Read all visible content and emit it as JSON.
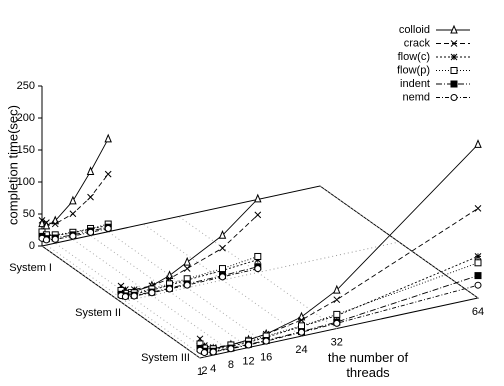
{
  "chart_data": {
    "type": "line3d",
    "zlabel": "completion time(sec)",
    "xlabel": "the number of threads",
    "zlim": [
      0,
      250
    ],
    "zticks": [
      0,
      50,
      100,
      150,
      200,
      250
    ],
    "xlim": [
      1,
      64
    ],
    "xticks": [
      1,
      2,
      4,
      8,
      12,
      16,
      24,
      32,
      64
    ],
    "depth_categories": [
      "System I",
      "System II",
      "System III"
    ],
    "x": [
      [
        1,
        2,
        4,
        8,
        12,
        16
      ],
      [
        1,
        2,
        4,
        8,
        12,
        16,
        24,
        32
      ],
      [
        1,
        2,
        4,
        8,
        12,
        16,
        24,
        32,
        64
      ]
    ],
    "series": [
      {
        "name": "colloid",
        "marker": "triangle",
        "dash": "none",
        "values": [
          [
            35,
            30,
            35,
            60,
            100,
            145
          ],
          [
            20,
            15,
            12,
            15,
            25,
            40,
            70,
            115
          ],
          [
            25,
            15,
            10,
            10,
            12,
            15,
            30,
            60,
            240
          ]
        ]
      },
      {
        "name": "crack",
        "marker": "cross",
        "dash": "5 3",
        "values": [
          [
            40,
            35,
            30,
            40,
            60,
            90
          ],
          [
            25,
            18,
            15,
            15,
            20,
            30,
            50,
            90
          ],
          [
            30,
            18,
            12,
            10,
            12,
            15,
            25,
            45,
            140
          ]
        ]
      },
      {
        "name": "flow(c)",
        "marker": "star",
        "dash": "2 2",
        "values": [
          [
            20,
            15,
            12,
            10,
            10,
            10
          ],
          [
            15,
            10,
            8,
            8,
            10,
            12,
            15,
            20
          ],
          [
            20,
            12,
            8,
            8,
            8,
            10,
            15,
            20,
            65
          ]
        ]
      },
      {
        "name": "flow(p)",
        "marker": "square",
        "dash": "1 2",
        "values": [
          [
            22,
            16,
            13,
            11,
            11,
            12
          ],
          [
            18,
            12,
            10,
            10,
            12,
            14,
            18,
            25
          ],
          [
            22,
            14,
            10,
            10,
            10,
            12,
            16,
            22,
            55
          ]
        ]
      },
      {
        "name": "indent",
        "marker": "filled-square",
        "dash": "6 2 1 2",
        "values": [
          [
            15,
            10,
            8,
            7,
            7,
            7
          ],
          [
            12,
            8,
            6,
            5,
            5,
            6,
            7,
            9
          ],
          [
            15,
            9,
            6,
            5,
            5,
            5,
            7,
            10,
            35
          ]
        ]
      },
      {
        "name": "nemd",
        "marker": "circle",
        "dash": "4 2 1 2",
        "values": [
          [
            12,
            8,
            6,
            5,
            5,
            5
          ],
          [
            10,
            7,
            5,
            4,
            4,
            4,
            5,
            6
          ],
          [
            12,
            7,
            5,
            4,
            4,
            4,
            6,
            8,
            20
          ]
        ]
      }
    ]
  }
}
